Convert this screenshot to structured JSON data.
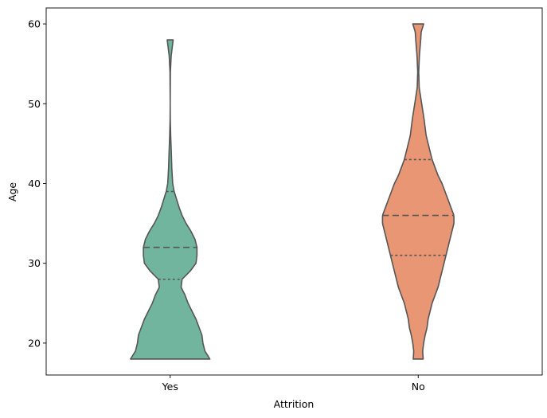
{
  "chart_data": {
    "type": "violin",
    "xlabel": "Attrition",
    "ylabel": "Age",
    "categories": [
      "Yes",
      "No"
    ],
    "ylim": [
      16,
      62
    ],
    "yticks": [
      20,
      30,
      40,
      50,
      60
    ],
    "colors": [
      "#72b59f",
      "#e99675"
    ],
    "outline_color": "#555555",
    "series": [
      {
        "category": "Yes",
        "min": 18,
        "max": 58,
        "q1": 28,
        "median": 32,
        "q3": 39,
        "profile": [
          [
            18,
            0.4
          ],
          [
            19,
            0.35
          ],
          [
            20,
            0.33
          ],
          [
            21,
            0.32
          ],
          [
            22,
            0.29
          ],
          [
            23,
            0.26
          ],
          [
            24,
            0.22
          ],
          [
            25,
            0.18
          ],
          [
            26,
            0.15
          ],
          [
            27,
            0.11
          ],
          [
            28,
            0.12
          ],
          [
            29,
            0.2
          ],
          [
            30,
            0.26
          ],
          [
            31,
            0.27
          ],
          [
            32,
            0.27
          ],
          [
            33,
            0.25
          ],
          [
            34,
            0.21
          ],
          [
            35,
            0.16
          ],
          [
            36,
            0.12
          ],
          [
            37,
            0.09
          ],
          [
            38,
            0.065
          ],
          [
            39,
            0.04
          ],
          [
            40,
            0.025
          ],
          [
            42,
            0.016
          ],
          [
            44,
            0.011
          ],
          [
            46,
            0.005
          ],
          [
            48,
            0.001
          ],
          [
            50,
            0.0
          ],
          [
            52,
            0.001
          ],
          [
            54,
            0.002
          ],
          [
            56,
            0.01
          ],
          [
            57,
            0.02
          ],
          [
            58,
            0.03
          ]
        ]
      },
      {
        "category": "No",
        "min": 18,
        "max": 60,
        "q1": 31,
        "median": 36,
        "q3": 43,
        "profile": [
          [
            18,
            0.05
          ],
          [
            19,
            0.045
          ],
          [
            20,
            0.055
          ],
          [
            21,
            0.07
          ],
          [
            22,
            0.09
          ],
          [
            23,
            0.1
          ],
          [
            24,
            0.12
          ],
          [
            25,
            0.14
          ],
          [
            26,
            0.17
          ],
          [
            27,
            0.2
          ],
          [
            28,
            0.22
          ],
          [
            29,
            0.24
          ],
          [
            30,
            0.26
          ],
          [
            31,
            0.28
          ],
          [
            32,
            0.3
          ],
          [
            33,
            0.32
          ],
          [
            34,
            0.34
          ],
          [
            35,
            0.36
          ],
          [
            36,
            0.36
          ],
          [
            37,
            0.33
          ],
          [
            38,
            0.3
          ],
          [
            39,
            0.27
          ],
          [
            40,
            0.24
          ],
          [
            41,
            0.2
          ],
          [
            42,
            0.17
          ],
          [
            43,
            0.14
          ],
          [
            44,
            0.12
          ],
          [
            46,
            0.08
          ],
          [
            48,
            0.06
          ],
          [
            50,
            0.035
          ],
          [
            52,
            0.01
          ],
          [
            54,
            0.005
          ],
          [
            56,
            0.012
          ],
          [
            58,
            0.025
          ],
          [
            59,
            0.03
          ],
          [
            60,
            0.055
          ]
        ]
      }
    ]
  }
}
